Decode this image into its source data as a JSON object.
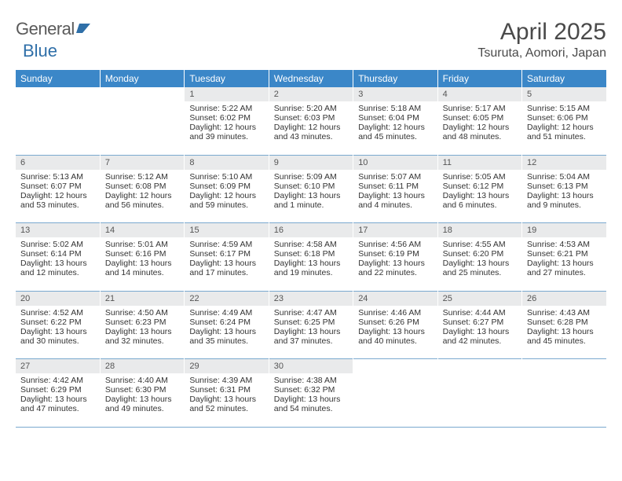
{
  "brand": {
    "text1": "General",
    "text2": "Blue"
  },
  "title": "April 2025",
  "location": "Tsuruta, Aomori, Japan",
  "colors": {
    "header_bg": "#3b87c8",
    "header_text": "#ffffff",
    "daynum_bg": "#e9eaeb",
    "rule": "#7aa9cf",
    "text": "#333333",
    "title_text": "#4a4a4a"
  },
  "dow": [
    "Sunday",
    "Monday",
    "Tuesday",
    "Wednesday",
    "Thursday",
    "Friday",
    "Saturday"
  ],
  "weeks": [
    [
      null,
      null,
      {
        "n": "1",
        "sr": "5:22 AM",
        "ss": "6:02 PM",
        "dl": "12 hours and 39 minutes."
      },
      {
        "n": "2",
        "sr": "5:20 AM",
        "ss": "6:03 PM",
        "dl": "12 hours and 43 minutes."
      },
      {
        "n": "3",
        "sr": "5:18 AM",
        "ss": "6:04 PM",
        "dl": "12 hours and 45 minutes."
      },
      {
        "n": "4",
        "sr": "5:17 AM",
        "ss": "6:05 PM",
        "dl": "12 hours and 48 minutes."
      },
      {
        "n": "5",
        "sr": "5:15 AM",
        "ss": "6:06 PM",
        "dl": "12 hours and 51 minutes."
      }
    ],
    [
      {
        "n": "6",
        "sr": "5:13 AM",
        "ss": "6:07 PM",
        "dl": "12 hours and 53 minutes."
      },
      {
        "n": "7",
        "sr": "5:12 AM",
        "ss": "6:08 PM",
        "dl": "12 hours and 56 minutes."
      },
      {
        "n": "8",
        "sr": "5:10 AM",
        "ss": "6:09 PM",
        "dl": "12 hours and 59 minutes."
      },
      {
        "n": "9",
        "sr": "5:09 AM",
        "ss": "6:10 PM",
        "dl": "13 hours and 1 minute."
      },
      {
        "n": "10",
        "sr": "5:07 AM",
        "ss": "6:11 PM",
        "dl": "13 hours and 4 minutes."
      },
      {
        "n": "11",
        "sr": "5:05 AM",
        "ss": "6:12 PM",
        "dl": "13 hours and 6 minutes."
      },
      {
        "n": "12",
        "sr": "5:04 AM",
        "ss": "6:13 PM",
        "dl": "13 hours and 9 minutes."
      }
    ],
    [
      {
        "n": "13",
        "sr": "5:02 AM",
        "ss": "6:14 PM",
        "dl": "13 hours and 12 minutes."
      },
      {
        "n": "14",
        "sr": "5:01 AM",
        "ss": "6:16 PM",
        "dl": "13 hours and 14 minutes."
      },
      {
        "n": "15",
        "sr": "4:59 AM",
        "ss": "6:17 PM",
        "dl": "13 hours and 17 minutes."
      },
      {
        "n": "16",
        "sr": "4:58 AM",
        "ss": "6:18 PM",
        "dl": "13 hours and 19 minutes."
      },
      {
        "n": "17",
        "sr": "4:56 AM",
        "ss": "6:19 PM",
        "dl": "13 hours and 22 minutes."
      },
      {
        "n": "18",
        "sr": "4:55 AM",
        "ss": "6:20 PM",
        "dl": "13 hours and 25 minutes."
      },
      {
        "n": "19",
        "sr": "4:53 AM",
        "ss": "6:21 PM",
        "dl": "13 hours and 27 minutes."
      }
    ],
    [
      {
        "n": "20",
        "sr": "4:52 AM",
        "ss": "6:22 PM",
        "dl": "13 hours and 30 minutes."
      },
      {
        "n": "21",
        "sr": "4:50 AM",
        "ss": "6:23 PM",
        "dl": "13 hours and 32 minutes."
      },
      {
        "n": "22",
        "sr": "4:49 AM",
        "ss": "6:24 PM",
        "dl": "13 hours and 35 minutes."
      },
      {
        "n": "23",
        "sr": "4:47 AM",
        "ss": "6:25 PM",
        "dl": "13 hours and 37 minutes."
      },
      {
        "n": "24",
        "sr": "4:46 AM",
        "ss": "6:26 PM",
        "dl": "13 hours and 40 minutes."
      },
      {
        "n": "25",
        "sr": "4:44 AM",
        "ss": "6:27 PM",
        "dl": "13 hours and 42 minutes."
      },
      {
        "n": "26",
        "sr": "4:43 AM",
        "ss": "6:28 PM",
        "dl": "13 hours and 45 minutes."
      }
    ],
    [
      {
        "n": "27",
        "sr": "4:42 AM",
        "ss": "6:29 PM",
        "dl": "13 hours and 47 minutes."
      },
      {
        "n": "28",
        "sr": "4:40 AM",
        "ss": "6:30 PM",
        "dl": "13 hours and 49 minutes."
      },
      {
        "n": "29",
        "sr": "4:39 AM",
        "ss": "6:31 PM",
        "dl": "13 hours and 52 minutes."
      },
      {
        "n": "30",
        "sr": "4:38 AM",
        "ss": "6:32 PM",
        "dl": "13 hours and 54 minutes."
      },
      null,
      null,
      null
    ]
  ],
  "labels": {
    "sunrise": "Sunrise:",
    "sunset": "Sunset:",
    "daylight": "Daylight:"
  }
}
